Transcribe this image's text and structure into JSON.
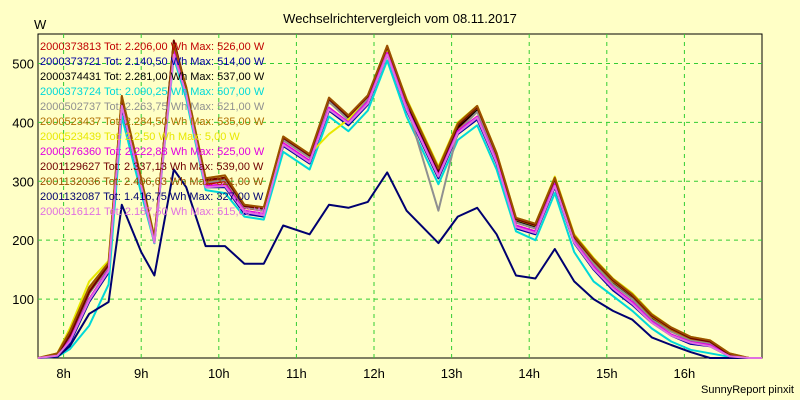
{
  "chart_data": {
    "type": "line",
    "title": "Wechselrichtervergleich vom 08.11.2017",
    "ylabel": "W",
    "xlabel": "",
    "credit": "SunnyReport pinxit",
    "grid": true,
    "legend_placement": "top-left",
    "xlim": [
      7.67,
      17.0
    ],
    "ylim": [
      0,
      550
    ],
    "x_ticks": [
      8,
      9,
      10,
      11,
      12,
      13,
      14,
      15,
      16
    ],
    "x_tick_labels": [
      "8h",
      "9h",
      "10h",
      "11h",
      "12h",
      "13h",
      "14h",
      "15h",
      "16h"
    ],
    "y_ticks": [
      100,
      200,
      300,
      400,
      500
    ],
    "y_tick_labels": [
      "100",
      "200",
      "300",
      "400",
      "500"
    ],
    "x": [
      7.67,
      7.92,
      8.08,
      8.33,
      8.58,
      8.75,
      9.0,
      9.17,
      9.42,
      9.58,
      9.83,
      10.08,
      10.33,
      10.58,
      10.83,
      11.17,
      11.42,
      11.67,
      11.92,
      12.17,
      12.42,
      12.83,
      13.08,
      13.33,
      13.58,
      13.83,
      14.08,
      14.33,
      14.58,
      14.83,
      15.08,
      15.33,
      15.58,
      15.83,
      16.08,
      16.33,
      16.58,
      16.83,
      17.0
    ],
    "series": [
      {
        "name": "2000373813",
        "legend": "2000373813 Tot: 2.206,00 Wh Max: 526,00 W",
        "color": "#c00000",
        "values": [
          0,
          5,
          35,
          110,
          155,
          435,
          300,
          200,
          535,
          455,
          295,
          300,
          255,
          250,
          370,
          340,
          435,
          405,
          440,
          525,
          430,
          315,
          390,
          420,
          340,
          230,
          220,
          300,
          200,
          160,
          125,
          100,
          65,
          45,
          30,
          25,
          5,
          0,
          0
        ]
      },
      {
        "name": "2000373721",
        "legend": "2000373721 Tot: 2.140,50 Wh Max: 514,00 W",
        "color": "#0000a0",
        "values": [
          0,
          3,
          25,
          95,
          145,
          425,
          290,
          195,
          520,
          445,
          290,
          290,
          245,
          240,
          360,
          330,
          420,
          395,
          430,
          515,
          420,
          305,
          380,
          405,
          330,
          220,
          210,
          290,
          195,
          150,
          115,
          90,
          60,
          38,
          24,
          20,
          3,
          0,
          0
        ]
      },
      {
        "name": "2000374431",
        "legend": "2000374431 Tot: 2.281,00 Wh Max: 537,00 W",
        "color": "#000000",
        "values": [
          0,
          5,
          35,
          110,
          155,
          440,
          300,
          200,
          537,
          455,
          300,
          305,
          258,
          252,
          372,
          342,
          438,
          408,
          442,
          527,
          432,
          318,
          392,
          422,
          342,
          232,
          222,
          302,
          202,
          162,
          128,
          102,
          68,
          46,
          32,
          26,
          6,
          0,
          0
        ]
      },
      {
        "name": "2000373724",
        "legend": "2000373724 Tot: 2.090,25 Wh Max: 507,00 W",
        "color": "#00d8d8",
        "values": [
          0,
          2,
          15,
          55,
          125,
          410,
          280,
          195,
          510,
          440,
          285,
          280,
          240,
          235,
          350,
          320,
          410,
          385,
          420,
          505,
          410,
          295,
          370,
          395,
          320,
          215,
          200,
          280,
          180,
          130,
          105,
          80,
          50,
          28,
          14,
          8,
          2,
          0,
          0
        ]
      },
      {
        "name": "2000502737",
        "legend": "2000502737 Tot: 2.263,75 Wh Max: 521,00 W",
        "color": "#909090",
        "values": [
          0,
          5,
          35,
          110,
          155,
          438,
          300,
          200,
          520,
          455,
          298,
          302,
          256,
          250,
          370,
          340,
          435,
          404,
          440,
          521,
          430,
          250,
          385,
          418,
          340,
          230,
          220,
          300,
          200,
          160,
          125,
          100,
          65,
          45,
          30,
          25,
          5,
          0,
          0
        ]
      },
      {
        "name": "2000523437",
        "legend": "2000523437 Tot: 2.284,50 Wh Max: 535,00 W",
        "color": "#b07000",
        "values": [
          0,
          6,
          40,
          115,
          160,
          440,
          302,
          202,
          535,
          457,
          300,
          306,
          258,
          254,
          374,
          344,
          440,
          410,
          444,
          530,
          436,
          320,
          395,
          425,
          345,
          235,
          225,
          305,
          205,
          165,
          130,
          105,
          70,
          48,
          33,
          28,
          6,
          0,
          0
        ]
      },
      {
        "name": "2000523439",
        "legend": "2000523439 Tot: 2.2,50 Wh Max: 5,00 W",
        "color": "#e8e800",
        "values": [
          0,
          8,
          50,
          130,
          165,
          445,
          305,
          205,
          530,
          460,
          305,
          310,
          260,
          255,
          376,
          346,
          380,
          405,
          445,
          525,
          440,
          325,
          400,
          428,
          348,
          238,
          228,
          308,
          210,
          170,
          135,
          110,
          75,
          52,
          36,
          30,
          8,
          0,
          0
        ]
      },
      {
        "name": "2000376360",
        "legend": "2000376360 Tot: 2.222,88 Wh Max: 525,00 W",
        "color": "#e000e0",
        "values": [
          0,
          4,
          30,
          100,
          150,
          430,
          295,
          198,
          525,
          450,
          292,
          295,
          250,
          245,
          365,
          335,
          425,
          400,
          435,
          518,
          425,
          310,
          385,
          410,
          335,
          225,
          215,
          295,
          198,
          155,
          120,
          95,
          62,
          40,
          27,
          22,
          4,
          0,
          0
        ]
      },
      {
        "name": "2001129627",
        "legend": "2001129627 Tot: 2.337,13 Wh Max: 539,00 W",
        "color": "#700000",
        "values": [
          0,
          6,
          38,
          112,
          158,
          442,
          302,
          202,
          539,
          458,
          302,
          306,
          258,
          254,
          374,
          344,
          440,
          410,
          444,
          528,
          436,
          320,
          395,
          426,
          346,
          236,
          226,
          304,
          206,
          166,
          132,
          106,
          72,
          50,
          34,
          28,
          6,
          0,
          0
        ]
      },
      {
        "name": "2001132036",
        "legend": "2001132036 Tot: 2.406,63 Wh Max: 321,00 W",
        "color": "#9a5000",
        "values": [
          0,
          8,
          45,
          120,
          162,
          445,
          305,
          205,
          532,
          460,
          305,
          310,
          260,
          256,
          376,
          346,
          442,
          412,
          446,
          530,
          438,
          322,
          398,
          428,
          348,
          238,
          228,
          306,
          208,
          168,
          134,
          108,
          74,
          52,
          36,
          30,
          8,
          0,
          0
        ]
      },
      {
        "name": "2001132087",
        "legend": "2001132087 Tot: 1.416,75 Wh Max: 327,00 W",
        "color": "#000070",
        "values": [
          0,
          2,
          20,
          75,
          95,
          260,
          180,
          140,
          320,
          290,
          190,
          190,
          160,
          160,
          225,
          210,
          260,
          255,
          265,
          315,
          250,
          195,
          240,
          255,
          210,
          140,
          135,
          185,
          130,
          100,
          80,
          65,
          35,
          22,
          10,
          0,
          0,
          0,
          0
        ]
      },
      {
        "name": "2000316121",
        "legend": "2000316121 Tot: 2.157,50 Wh Max: 515,00 W",
        "color": "#e070e0",
        "values": [
          0,
          4,
          28,
          98,
          148,
          428,
          292,
          196,
          515,
          448,
          290,
          292,
          248,
          242,
          362,
          332,
          422,
          398,
          432,
          515,
          422,
          308,
          382,
          408,
          332,
          222,
          212,
          292,
          196,
          152,
          118,
          92,
          60,
          38,
          26,
          20,
          3,
          0,
          0
        ]
      }
    ]
  }
}
